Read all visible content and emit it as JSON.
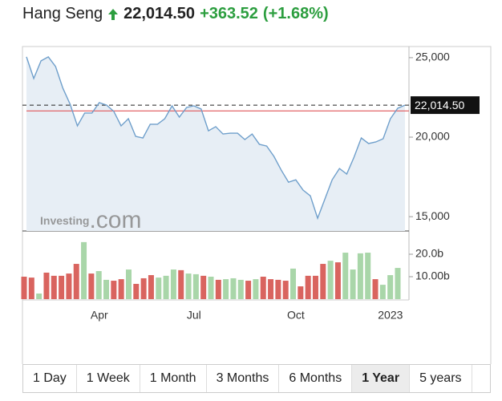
{
  "header": {
    "name": "Hang Seng",
    "price": "22,014.50",
    "change": "+363.52",
    "change_pct": "(+1.68%)"
  },
  "watermark": {
    "brand": "Investing",
    "suffix": ".com"
  },
  "chart_data": [
    {
      "type": "area",
      "name": "price",
      "color": "#6f9fcb",
      "fill": "#e7eef5",
      "current_line_color": "#222222",
      "previous_close": 21650.98,
      "previous_close_color": "#e0575a",
      "categories": [
        null,
        null,
        null,
        null,
        null,
        null,
        null,
        null,
        null,
        null,
        "Apr",
        null,
        null,
        null,
        null,
        null,
        null,
        null,
        null,
        null,
        null,
        null,
        null,
        "Jul",
        null,
        null,
        null,
        null,
        null,
        null,
        null,
        null,
        null,
        null,
        null,
        null,
        null,
        "Oct",
        null,
        null,
        null,
        null,
        null,
        null,
        null,
        null,
        null,
        null,
        null,
        null,
        "2023",
        null,
        null
      ],
      "values": [
        25050,
        23690,
        24800,
        25050,
        24440,
        23080,
        22070,
        20710,
        21520,
        21520,
        22170,
        22020,
        21620,
        20710,
        21160,
        20050,
        19950,
        20810,
        20810,
        21160,
        21970,
        21260,
        21870,
        21970,
        21770,
        20400,
        20660,
        20200,
        20250,
        20250,
        19850,
        20200,
        19550,
        19440,
        18790,
        17930,
        17170,
        17320,
        16670,
        16310,
        14900,
        16110,
        17320,
        18030,
        17680,
        18740,
        19950,
        19600,
        19700,
        19900,
        21160,
        21820,
        22014.5
      ],
      "ylim": [
        14100,
        25600
      ],
      "yticks": [
        {
          "value": 15000,
          "label": "15,000"
        },
        {
          "value": 20000,
          "label": "20,000"
        },
        {
          "value": 25000,
          "label": "25,000"
        }
      ]
    },
    {
      "type": "bar",
      "name": "volume",
      "values": [
        10,
        9.6,
        2.5,
        11.8,
        10.4,
        10.4,
        11.4,
        15.7,
        25.4,
        11.4,
        12.5,
        8.6,
        8.2,
        8.9,
        13.2,
        6.8,
        9.3,
        10.7,
        9.6,
        10.4,
        13.2,
        12.9,
        11.4,
        11.1,
        10.4,
        10,
        8.6,
        8.9,
        9.3,
        8.6,
        8.2,
        8.9,
        10,
        8.9,
        8.6,
        8.2,
        13.6,
        5.7,
        10.4,
        10.4,
        15.7,
        17.1,
        16.4,
        20.7,
        13.2,
        20.4,
        20.7,
        8.9,
        6.4,
        10.7,
        13.9
      ],
      "colors": [
        "#d9645f",
        "#d9645f",
        "#a9d6a9",
        "#d9645f",
        "#d9645f",
        "#d9645f",
        "#d9645f",
        "#d9645f",
        "#a9d6a9",
        "#d9645f",
        "#a9d6a9",
        "#a9d6a9",
        "#d9645f",
        "#d9645f",
        "#a9d6a9",
        "#d9645f",
        "#d9645f",
        "#d9645f",
        "#a9d6a9",
        "#a9d6a9",
        "#a9d6a9",
        "#d9645f",
        "#a9d6a9",
        "#a9d6a9",
        "#d9645f",
        "#a9d6a9",
        "#d9645f",
        "#a9d6a9",
        "#a9d6a9",
        "#a9d6a9",
        "#d9645f",
        "#a9d6a9",
        "#d9645f",
        "#d9645f",
        "#d9645f",
        "#d9645f",
        "#a9d6a9",
        "#d9645f",
        "#d9645f",
        "#d9645f",
        "#d9645f",
        "#a9d6a9",
        "#d9645f",
        "#a9d6a9",
        "#a9d6a9",
        "#a9d6a9",
        "#a9d6a9",
        "#d9645f",
        "#a9d6a9",
        "#a9d6a9",
        "#a9d6a9"
      ],
      "ylim": [
        0,
        30
      ],
      "yticks": [
        {
          "value": 10,
          "label": "10.00b"
        },
        {
          "value": 20,
          "label": "20.0b"
        }
      ]
    }
  ],
  "ranges": [
    "1 Day",
    "1 Week",
    "1 Month",
    "3 Months",
    "6 Months",
    "1 Year",
    "5 years"
  ],
  "selected_range": 5
}
